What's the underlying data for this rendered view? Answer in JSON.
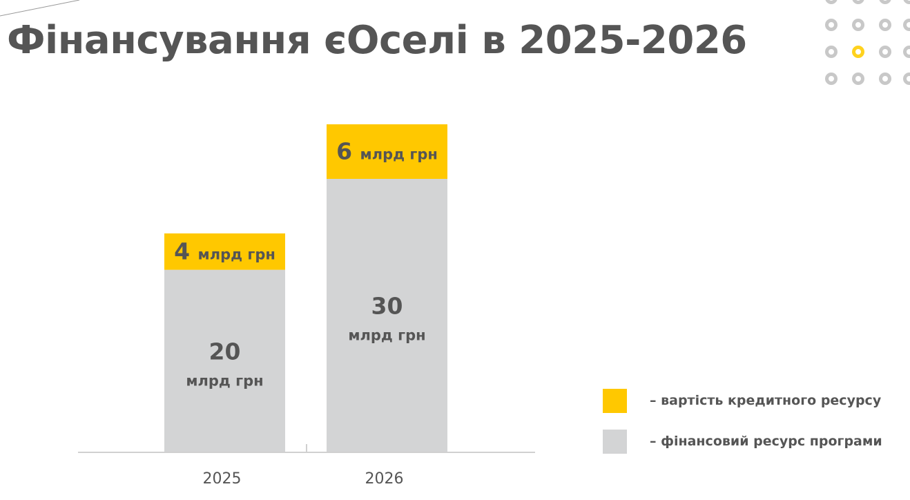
{
  "title": "Фінансування єОселі в 2025-2026",
  "colors": {
    "credit_cost": "#FFC800",
    "program_resource": "#D3D4D5",
    "text": "#555555",
    "axis": "#D0D0D0",
    "dot": "#C8C8C8",
    "dot_accent": "#FFD21E"
  },
  "decor": {
    "dot_grid_accent_icon": "yellow-ring-icon"
  },
  "legend": [
    {
      "key": "credit_cost",
      "label": "– вартість кредитного ресурсу"
    },
    {
      "key": "program_resource",
      "label": "– фінансовий ресурс програми"
    }
  ],
  "chart_data": {
    "type": "bar",
    "stacked": true,
    "categories": [
      "2025",
      "2026"
    ],
    "units": "млрд грн",
    "series": [
      {
        "name": "фінансовий ресурс програми",
        "color_key": "program_resource",
        "values": [
          20,
          30
        ]
      },
      {
        "name": "вартість кредитного ресурсу",
        "color_key": "credit_cost",
        "values": [
          4,
          6
        ]
      }
    ],
    "bar_labels": {
      "program_resource": [
        {
          "number": "20",
          "unit": "млрд грн"
        },
        {
          "number": "30",
          "unit": "млрд грн"
        }
      ],
      "credit_cost": [
        {
          "number": "4",
          "unit": "млрд грн"
        },
        {
          "number": "6",
          "unit": "млрд грн"
        }
      ]
    },
    "ylim": [
      0,
      36
    ],
    "legend_position": "right",
    "grid": false
  }
}
